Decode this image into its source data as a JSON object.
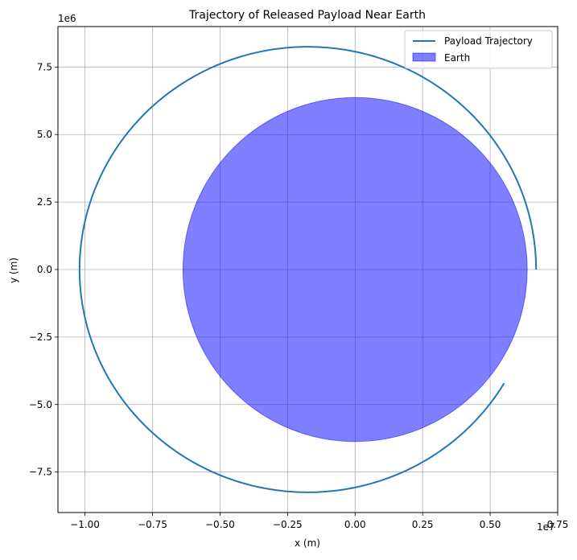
{
  "chart_data": {
    "type": "line",
    "title": "Trajectory of Released Payload Near Earth",
    "xlabel": "x (m)",
    "ylabel": "y (m)",
    "x_offset_label": "1e7",
    "y_offset_label": "1e6",
    "xlim": [
      -11000000,
      7500000
    ],
    "ylim": [
      -9000000,
      9000000
    ],
    "x_ticks": [
      -10000000,
      -7500000,
      -5000000,
      -2500000,
      0,
      2500000,
      5000000,
      7500000
    ],
    "x_tick_labels": [
      "−1.00",
      "−0.75",
      "−0.50",
      "−0.25",
      "0.00",
      "0.25",
      "0.50",
      "0.75"
    ],
    "y_ticks": [
      -7500000,
      -5000000,
      -2500000,
      0,
      2500000,
      5000000,
      7500000
    ],
    "y_tick_labels": [
      "−7.5",
      "−5.0",
      "−2.5",
      "0.0",
      "2.5",
      "5.0",
      "7.5"
    ],
    "grid": true,
    "legend_position": "top-right",
    "series": [
      {
        "name": "Payload Trajectory",
        "kind": "line",
        "color": "#1f77b4",
        "ellipse": {
          "center": [
            -1750000,
            0
          ],
          "semi_x": 8450000,
          "semi_y": 8250000
        },
        "start": [
          6700000,
          0
        ],
        "end": [
          5500000,
          -4200000
        ],
        "direction": "counterclockwise"
      },
      {
        "name": "Earth",
        "kind": "filled-circle",
        "color": "#0000ff",
        "alpha": 0.5,
        "center": [
          0,
          0
        ],
        "radius": 6371000
      }
    ]
  }
}
